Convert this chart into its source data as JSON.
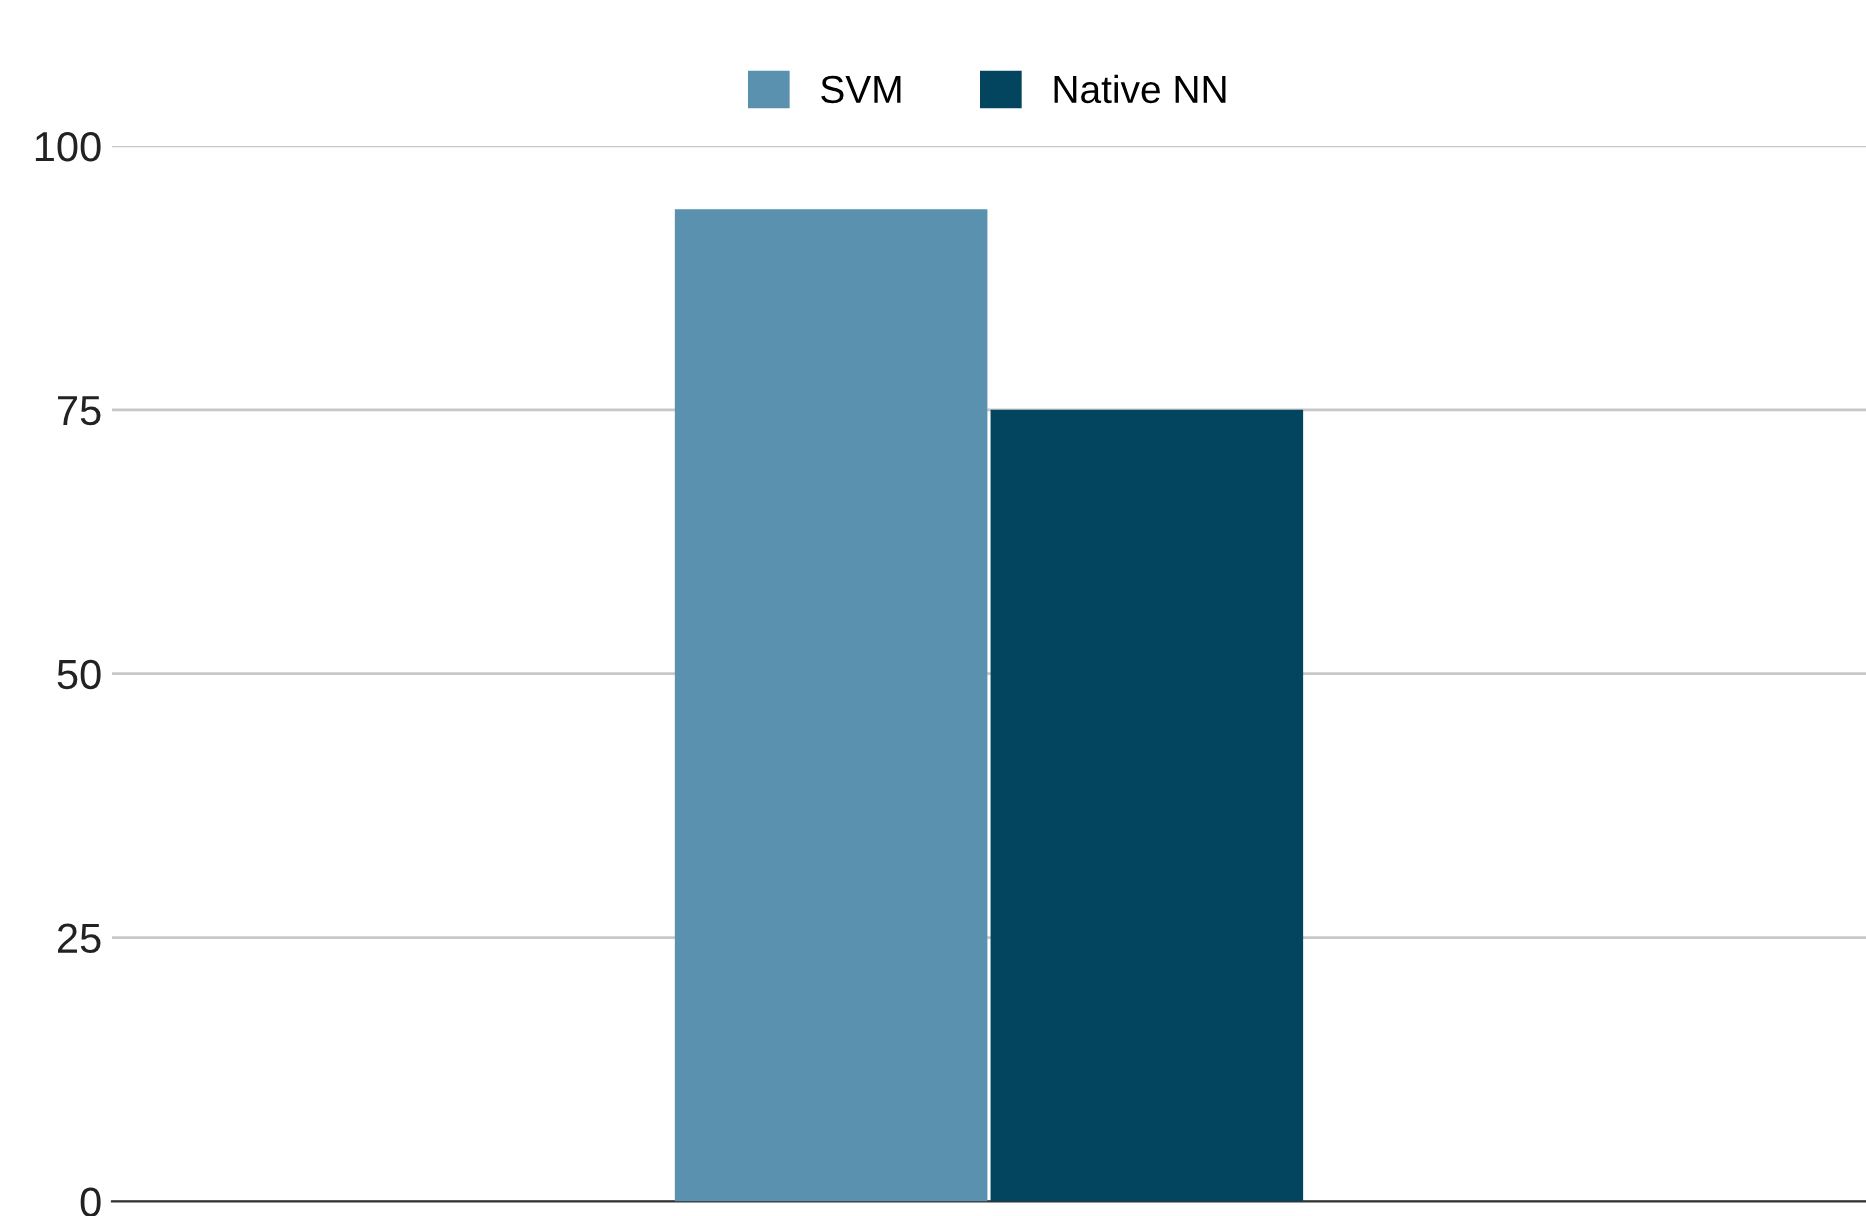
{
  "chart_data": {
    "type": "bar",
    "categories": [
      null
    ],
    "series": [
      {
        "name": "SVM",
        "color": "#5991ae",
        "values": [
          94
        ]
      },
      {
        "name": "Native NN",
        "color": "#03445e",
        "values": [
          75
        ]
      }
    ],
    "ylim": [
      0,
      100
    ],
    "yticks": [
      0,
      25,
      50,
      75,
      100
    ],
    "grid": "y",
    "legend": "top"
  }
}
